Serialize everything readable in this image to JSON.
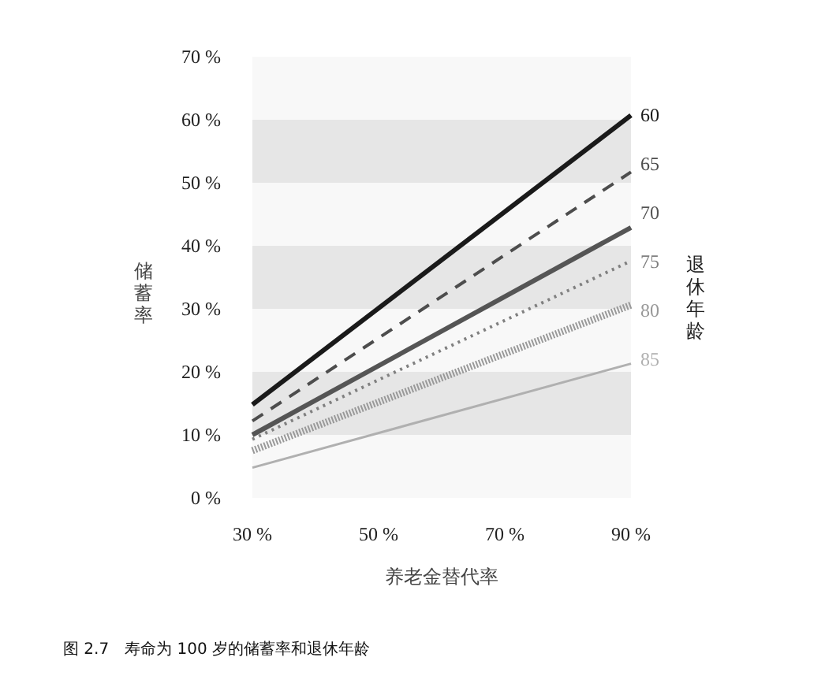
{
  "chart_data": {
    "type": "line",
    "x": [
      30,
      90
    ],
    "xlabel": "养老金替代率",
    "ylabel": "储蓄率",
    "legend_title": "退休年龄",
    "xlim": [
      30,
      90
    ],
    "ylim": [
      0,
      70
    ],
    "xticks": [
      {
        "value": 30,
        "label": "30 %"
      },
      {
        "value": 50,
        "label": "50 %"
      },
      {
        "value": 70,
        "label": "70 %"
      },
      {
        "value": 90,
        "label": "90 %"
      }
    ],
    "yticks": [
      {
        "value": 0,
        "label": "0 %"
      },
      {
        "value": 10,
        "label": "10 %"
      },
      {
        "value": 20,
        "label": "20 %"
      },
      {
        "value": 30,
        "label": "30 %"
      },
      {
        "value": 40,
        "label": "40 %"
      },
      {
        "value": 50,
        "label": "50 %"
      },
      {
        "value": 60,
        "label": "60 %"
      },
      {
        "value": 70,
        "label": "70 %"
      }
    ],
    "grid": false,
    "legend": "right",
    "bands": [
      {
        "axis": "y",
        "from": 0,
        "to": 70,
        "color": "#f8f8f8"
      },
      {
        "axis": "y",
        "from": 10,
        "to": 20,
        "color": "#e6e6e6"
      },
      {
        "axis": "y",
        "from": 30,
        "to": 40,
        "color": "#e6e6e6"
      },
      {
        "axis": "y",
        "from": 50,
        "to": 60,
        "color": "#e6e6e6"
      }
    ],
    "series": [
      {
        "name": "60",
        "color": "#1a1a1a",
        "line_style": "solid",
        "values": [
          14.8,
          60.7
        ]
      },
      {
        "name": "65",
        "color": "#4d4d4d",
        "line_style": "dashed",
        "values": [
          12.2,
          51.7
        ]
      },
      {
        "name": "70",
        "color": "#555555",
        "line_style": "solid",
        "values": [
          10.0,
          42.9
        ]
      },
      {
        "name": "75",
        "color": "#808080",
        "line_style": "dotted",
        "values": [
          9.3,
          37.6
        ]
      },
      {
        "name": "80",
        "color": "#999999",
        "line_style": "dotted",
        "values": [
          7.5,
          30.6
        ]
      },
      {
        "name": "85",
        "color": "#b0b0b0",
        "line_style": "solid",
        "values": [
          4.8,
          21.3
        ]
      }
    ],
    "annotations": [
      "图 2.7　寿命为 100 岁的储蓄率和退休年龄"
    ]
  }
}
